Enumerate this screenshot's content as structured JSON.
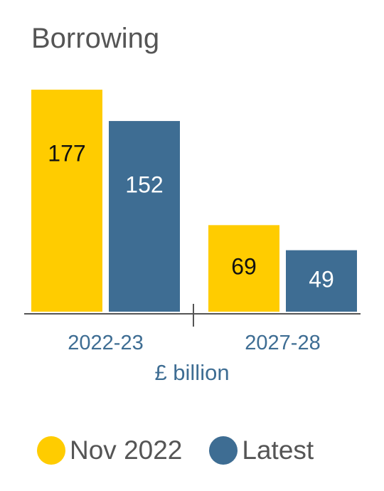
{
  "chart_data": {
    "type": "bar",
    "title": "Borrowing",
    "unit_label": "£ billion",
    "categories": [
      "2022-23",
      "2027-28"
    ],
    "series": [
      {
        "name": "Nov 2022",
        "values": [
          177,
          69
        ],
        "color": "#ffcc00",
        "label_color": "#111111"
      },
      {
        "name": "Latest",
        "values": [
          152,
          49
        ],
        "color": "#3e6d93",
        "label_color": "#ffffff"
      }
    ],
    "ylim": [
      0,
      177
    ],
    "grid": false,
    "legend_position": "bottom"
  }
}
